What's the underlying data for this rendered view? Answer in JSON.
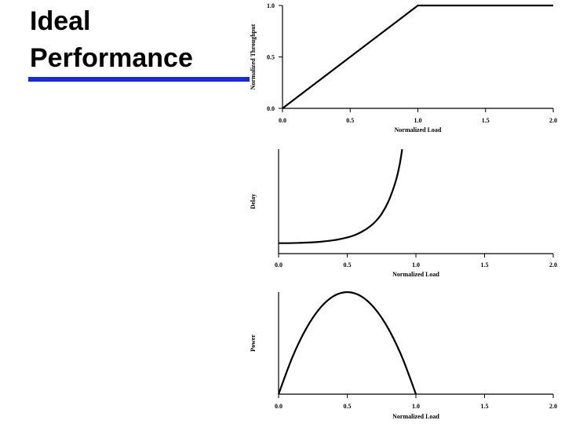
{
  "slide": {
    "title_lines": [
      "Ideal",
      "Performance"
    ],
    "accent_color": "#1a2bd6"
  },
  "chart_data": [
    {
      "type": "line",
      "title": "",
      "xlabel": "Normalized Load",
      "ylabel": "Normalized Throughput",
      "xlim": [
        0,
        2
      ],
      "ylim": [
        0,
        1
      ],
      "x_ticks": [
        "0.0",
        "0.5",
        "1.0",
        "1.5",
        "2.0"
      ],
      "y_ticks": [
        "0.0",
        "0.5",
        "1.0"
      ],
      "series": [
        {
          "x": [
            0,
            0.25,
            0.5,
            0.75,
            1.0,
            1.25,
            1.5,
            1.75,
            2.0
          ],
          "y": [
            0,
            0.25,
            0.5,
            0.75,
            1.0,
            1.0,
            1.0,
            1.0,
            1.0
          ]
        }
      ]
    },
    {
      "type": "line",
      "title": "",
      "xlabel": "Normalized Load",
      "ylabel": "Delay",
      "xlim": [
        0,
        2
      ],
      "ylim": [
        0,
        1
      ],
      "x_ticks": [
        "0.0",
        "0.5",
        "1.0",
        "1.5",
        "2.0"
      ],
      "y_ticks": [],
      "series": [
        {
          "x": [
            0,
            0.1,
            0.2,
            0.3,
            0.4,
            0.5,
            0.55,
            0.6,
            0.65,
            0.7,
            0.75,
            0.8,
            0.85,
            0.88,
            0.9
          ],
          "y": [
            0.1,
            0.101,
            0.105,
            0.113,
            0.128,
            0.155,
            0.175,
            0.205,
            0.245,
            0.3,
            0.38,
            0.5,
            0.68,
            0.84,
            1.0
          ]
        }
      ]
    },
    {
      "type": "line",
      "title": "",
      "xlabel": "Normalized Load",
      "ylabel": "Power",
      "xlim": [
        0,
        2
      ],
      "ylim": [
        0,
        1
      ],
      "x_ticks": [
        "0.0",
        "0.5",
        "1.0",
        "1.5",
        "2.0"
      ],
      "y_ticks": [],
      "series": [
        {
          "x": [
            0,
            0.1,
            0.2,
            0.3,
            0.4,
            0.5,
            0.6,
            0.7,
            0.8,
            0.9,
            1.0
          ],
          "y": [
            0,
            0.36,
            0.64,
            0.84,
            0.96,
            1.0,
            0.96,
            0.84,
            0.64,
            0.36,
            0
          ]
        }
      ]
    }
  ]
}
